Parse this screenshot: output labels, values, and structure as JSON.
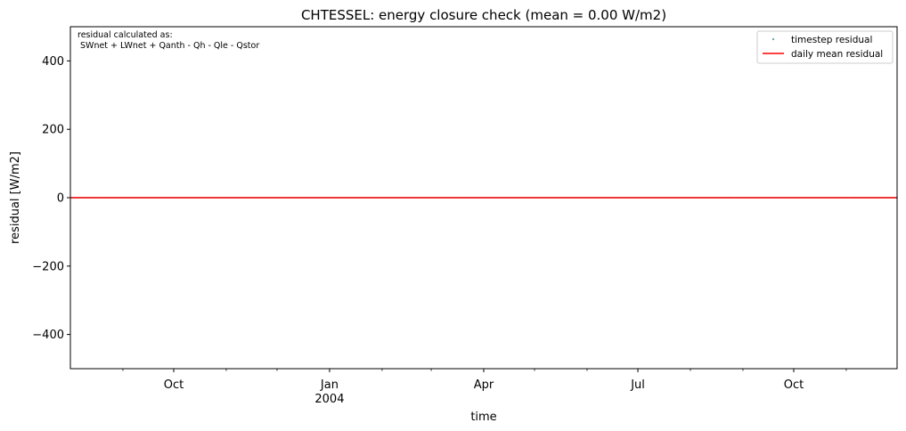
{
  "chart_data": {
    "type": "line",
    "title": "CHTESSEL: energy closure check (mean = 0.00 W/m2)",
    "xlabel": "time",
    "ylabel": "residual [W/m2]",
    "xlim": [
      "2003-08-01",
      "2004-12-01"
    ],
    "ylim": [
      -500,
      500
    ],
    "yticks": [
      {
        "value": 400,
        "label": "400"
      },
      {
        "value": 200,
        "label": "200"
      },
      {
        "value": 0,
        "label": "0"
      },
      {
        "value": -200,
        "label": "−200"
      },
      {
        "value": -400,
        "label": "−400"
      }
    ],
    "xticks_major": [
      {
        "date": "2003-10-01",
        "label": "Oct",
        "sublabel": ""
      },
      {
        "date": "2004-01-01",
        "label": "Jan",
        "sublabel": "2004"
      },
      {
        "date": "2004-04-01",
        "label": "Apr",
        "sublabel": ""
      },
      {
        "date": "2004-07-01",
        "label": "Jul",
        "sublabel": ""
      },
      {
        "date": "2004-10-01",
        "label": "Oct",
        "sublabel": ""
      }
    ],
    "xticks_minor": [
      "2003-09-01",
      "2003-11-01",
      "2003-12-01",
      "2004-02-01",
      "2004-03-01",
      "2004-05-01",
      "2004-06-01",
      "2004-08-01",
      "2004-09-01",
      "2004-11-01"
    ],
    "series": [
      {
        "name": "timestep residual",
        "style": "points",
        "color": "#5f9ea0",
        "x": [
          "2003-08-01",
          "2004-12-01"
        ],
        "y": [
          0,
          0
        ]
      },
      {
        "name": "daily mean residual",
        "style": "line",
        "color": "#ff0000",
        "x": [
          "2003-08-01",
          "2004-12-01"
        ],
        "y": [
          0,
          0
        ]
      }
    ],
    "annotation": {
      "line1": "residual calculated as:",
      "line2": " SWnet + LWnet + Qanth - Qh - Qle - Qstor"
    },
    "legend_position": "top-right",
    "grid": false
  }
}
